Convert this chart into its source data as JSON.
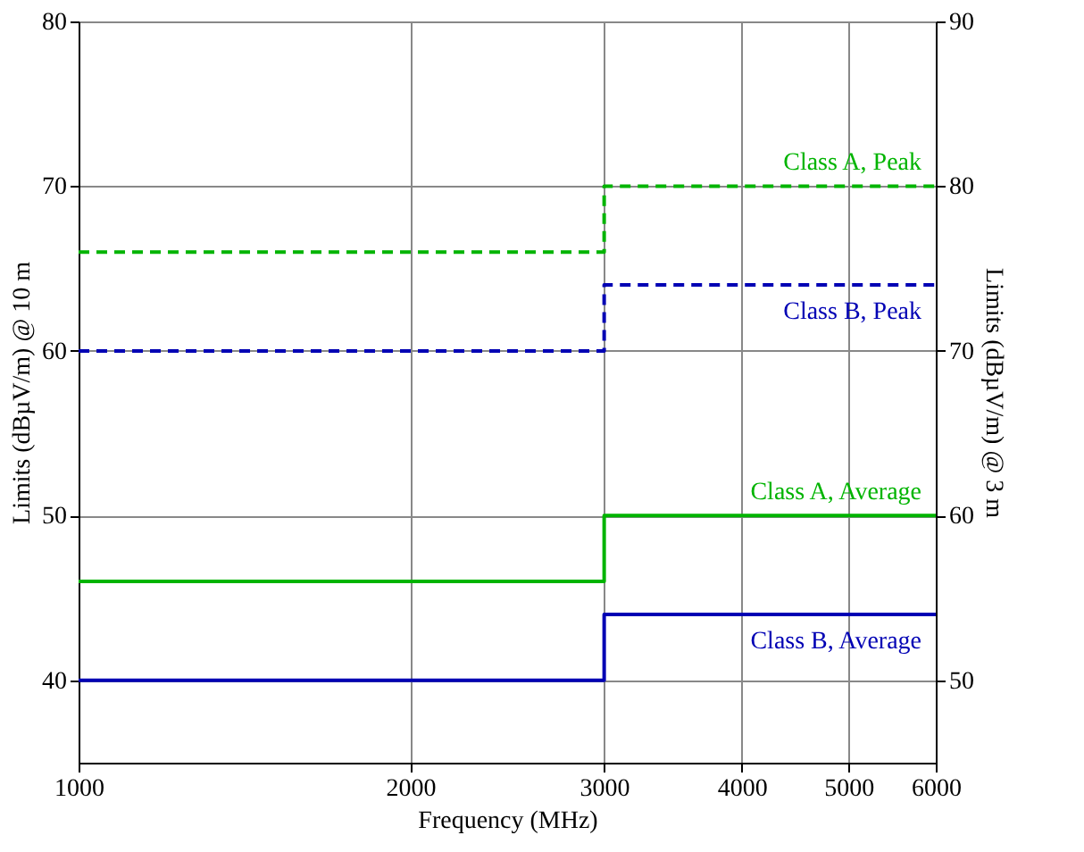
{
  "chart_data": {
    "type": "step",
    "xlabel": "Frequency (MHz)",
    "ylabel": "Limits (dBµV/m) @ 10 m",
    "y2label": "Limits (dBµV/m) @ 3 m",
    "log": "x",
    "xlim": [
      1000,
      6000
    ],
    "xticks": [
      1000,
      2000,
      3000,
      4000,
      5000,
      6000
    ],
    "ylim": [
      35,
      80
    ],
    "yticks": [
      40,
      50,
      60,
      70,
      80
    ],
    "y2lim": [
      45,
      90
    ],
    "y2ticks": [
      50,
      60,
      70,
      80,
      90
    ],
    "grid": true,
    "legend": false,
    "series": [
      {
        "name": "Class A, Peak",
        "color": "#00b400",
        "line_style": "dashed",
        "x": [
          1000,
          3000,
          6000
        ],
        "values": [
          66,
          70,
          70
        ]
      },
      {
        "name": "Class B, Peak",
        "color": "#0000b4",
        "line_style": "dashed",
        "x": [
          1000,
          3000,
          6000
        ],
        "values": [
          60,
          64,
          64
        ]
      },
      {
        "name": "Class A, Average",
        "color": "#00b400",
        "line_style": "solid",
        "x": [
          1000,
          3000,
          6000
        ],
        "values": [
          46,
          50,
          50
        ]
      },
      {
        "name": "Class B, Average",
        "color": "#0000b4",
        "line_style": "solid",
        "x": [
          1000,
          3000,
          6000
        ],
        "values": [
          40,
          44,
          44
        ]
      }
    ]
  }
}
